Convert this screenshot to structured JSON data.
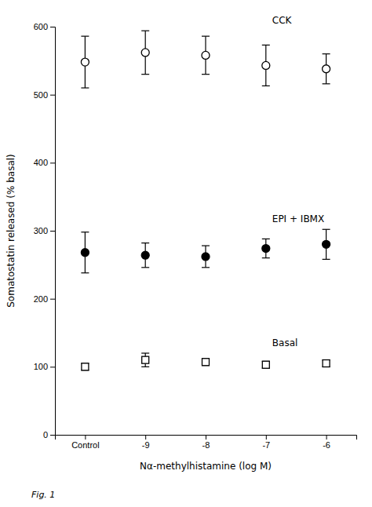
{
  "chart_data": {
    "type": "scatter",
    "categories": [
      "Control",
      "-9",
      "-8",
      "-7",
      "-6"
    ],
    "series": [
      {
        "name": "CCK",
        "marker": "circle-open",
        "color": "black",
        "values": [
          548,
          562,
          558,
          543,
          538
        ],
        "errors": [
          38,
          32,
          28,
          30,
          22
        ]
      },
      {
        "name": "EPI + IBMX",
        "marker": "circle",
        "color": "black",
        "values": [
          268,
          264,
          262,
          274,
          280
        ],
        "errors": [
          30,
          18,
          16,
          14,
          22
        ]
      },
      {
        "name": "Basal",
        "marker": "square-open",
        "color": "black",
        "values": [
          100,
          110,
          107,
          103,
          105
        ],
        "errors": [
          5,
          10,
          5,
          5,
          5
        ]
      }
    ],
    "ylabel": "Somatostatin released (% basal)",
    "xlabel": "Nα-methylhistamine (log M)",
    "ylim": [
      0,
      600
    ],
    "yticks": [
      0,
      100,
      200,
      300,
      400,
      500,
      600
    ],
    "grid": false,
    "caption": "Fig. 1"
  }
}
